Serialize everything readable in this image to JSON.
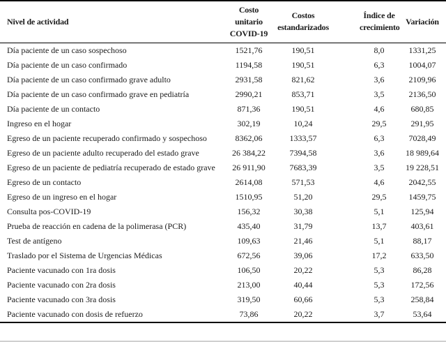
{
  "page": {
    "background_color": "#ffffff",
    "text_color": "#1b1b1b",
    "rule_color": "#000000",
    "page_edge_color": "#cfcfcf"
  },
  "table": {
    "headers": [
      "Nivel de actividad",
      "Costo\nunitario\nCOVID-19",
      "Costos\nestandarizados",
      "Índice de\ncrecimiento",
      "Variación"
    ],
    "rows": [
      {
        "nivel": "Día paciente de un caso sospechoso",
        "costo_unitario_covid19": "1521,76",
        "costos_estandarizados": "190,51",
        "indice_crecimiento": "8,0",
        "variacion": "1331,25"
      },
      {
        "nivel": "Día paciente de un caso confirmado",
        "costo_unitario_covid19": "1194,58",
        "costos_estandarizados": "190,51",
        "indice_crecimiento": "6,3",
        "variacion": "1004,07"
      },
      {
        "nivel": "Día paciente de un caso confirmado grave adulto",
        "costo_unitario_covid19": "2931,58",
        "costos_estandarizados": "821,62",
        "indice_crecimiento": "3,6",
        "variacion": "2109,96"
      },
      {
        "nivel": "Día paciente de un caso confirmado grave en pediatría",
        "costo_unitario_covid19": "2990,21",
        "costos_estandarizados": "853,71",
        "indice_crecimiento": "3,5",
        "variacion": "2136,50"
      },
      {
        "nivel": "Día paciente de un contacto",
        "costo_unitario_covid19": "871,36",
        "costos_estandarizados": "190,51",
        "indice_crecimiento": "4,6",
        "variacion": "680,85"
      },
      {
        "nivel": "Ingreso en el hogar",
        "costo_unitario_covid19": "302,19",
        "costos_estandarizados": "10,24",
        "indice_crecimiento": "29,5",
        "variacion": "291,95"
      },
      {
        "nivel": "Egreso de un paciente recuperado confirmado y sospechoso",
        "costo_unitario_covid19": "8362,06",
        "costos_estandarizados": "1333,57",
        "indice_crecimiento": "6,3",
        "variacion": "7028,49"
      },
      {
        "nivel": "Egreso de un paciente adulto recuperado del estado grave",
        "costo_unitario_covid19": "26 384,22",
        "costos_estandarizados": "7394,58",
        "indice_crecimiento": "3,6",
        "variacion": "18 989,64"
      },
      {
        "nivel": "Egreso de un paciente de pediatría recuperado de estado grave",
        "costo_unitario_covid19": "26 911,90",
        "costos_estandarizados": "7683,39",
        "indice_crecimiento": "3,5",
        "variacion": "19 228,51"
      },
      {
        "nivel": "Egreso de un contacto",
        "costo_unitario_covid19": "2614,08",
        "costos_estandarizados": "571,53",
        "indice_crecimiento": "4,6",
        "variacion": "2042,55"
      },
      {
        "nivel": "Egreso de un ingreso en el hogar",
        "costo_unitario_covid19": "1510,95",
        "costos_estandarizados": "51,20",
        "indice_crecimiento": "29,5",
        "variacion": "1459,75"
      },
      {
        "nivel": "Consulta pos-COVID-19",
        "costo_unitario_covid19": "156,32",
        "costos_estandarizados": "30,38",
        "indice_crecimiento": "5,1",
        "variacion": "125,94"
      },
      {
        "nivel": "Prueba de reacción en cadena de la polimerasa (PCR)",
        "costo_unitario_covid19": "435,40",
        "costos_estandarizados": "31,79",
        "indice_crecimiento": "13,7",
        "variacion": "403,61"
      },
      {
        "nivel": "Test de antígeno",
        "costo_unitario_covid19": "109,63",
        "costos_estandarizados": "21,46",
        "indice_crecimiento": "5,1",
        "variacion": "88,17"
      },
      {
        "nivel": "Traslado por el Sistema de Urgencias Médicas",
        "costo_unitario_covid19": "672,56",
        "costos_estandarizados": "39,06",
        "indice_crecimiento": "17,2",
        "variacion": "633,50"
      },
      {
        "nivel": "Paciente vacunado con 1ra dosis",
        "costo_unitario_covid19": "106,50",
        "costos_estandarizados": "20,22",
        "indice_crecimiento": "5,3",
        "variacion": "86,28"
      },
      {
        "nivel": "Paciente vacunado con 2ra dosis",
        "costo_unitario_covid19": "213,00",
        "costos_estandarizados": "40,44",
        "indice_crecimiento": "5,3",
        "variacion": "172,56"
      },
      {
        "nivel": "Paciente vacunado con 3ra dosis",
        "costo_unitario_covid19": "319,50",
        "costos_estandarizados": "60,66",
        "indice_crecimiento": "5,3",
        "variacion": "258,84"
      },
      {
        "nivel": "Paciente vacunado con dosis de refuerzo",
        "costo_unitario_covid19": "73,86",
        "costos_estandarizados": "20,22",
        "indice_crecimiento": "3,7",
        "variacion": "53,64"
      }
    ]
  }
}
